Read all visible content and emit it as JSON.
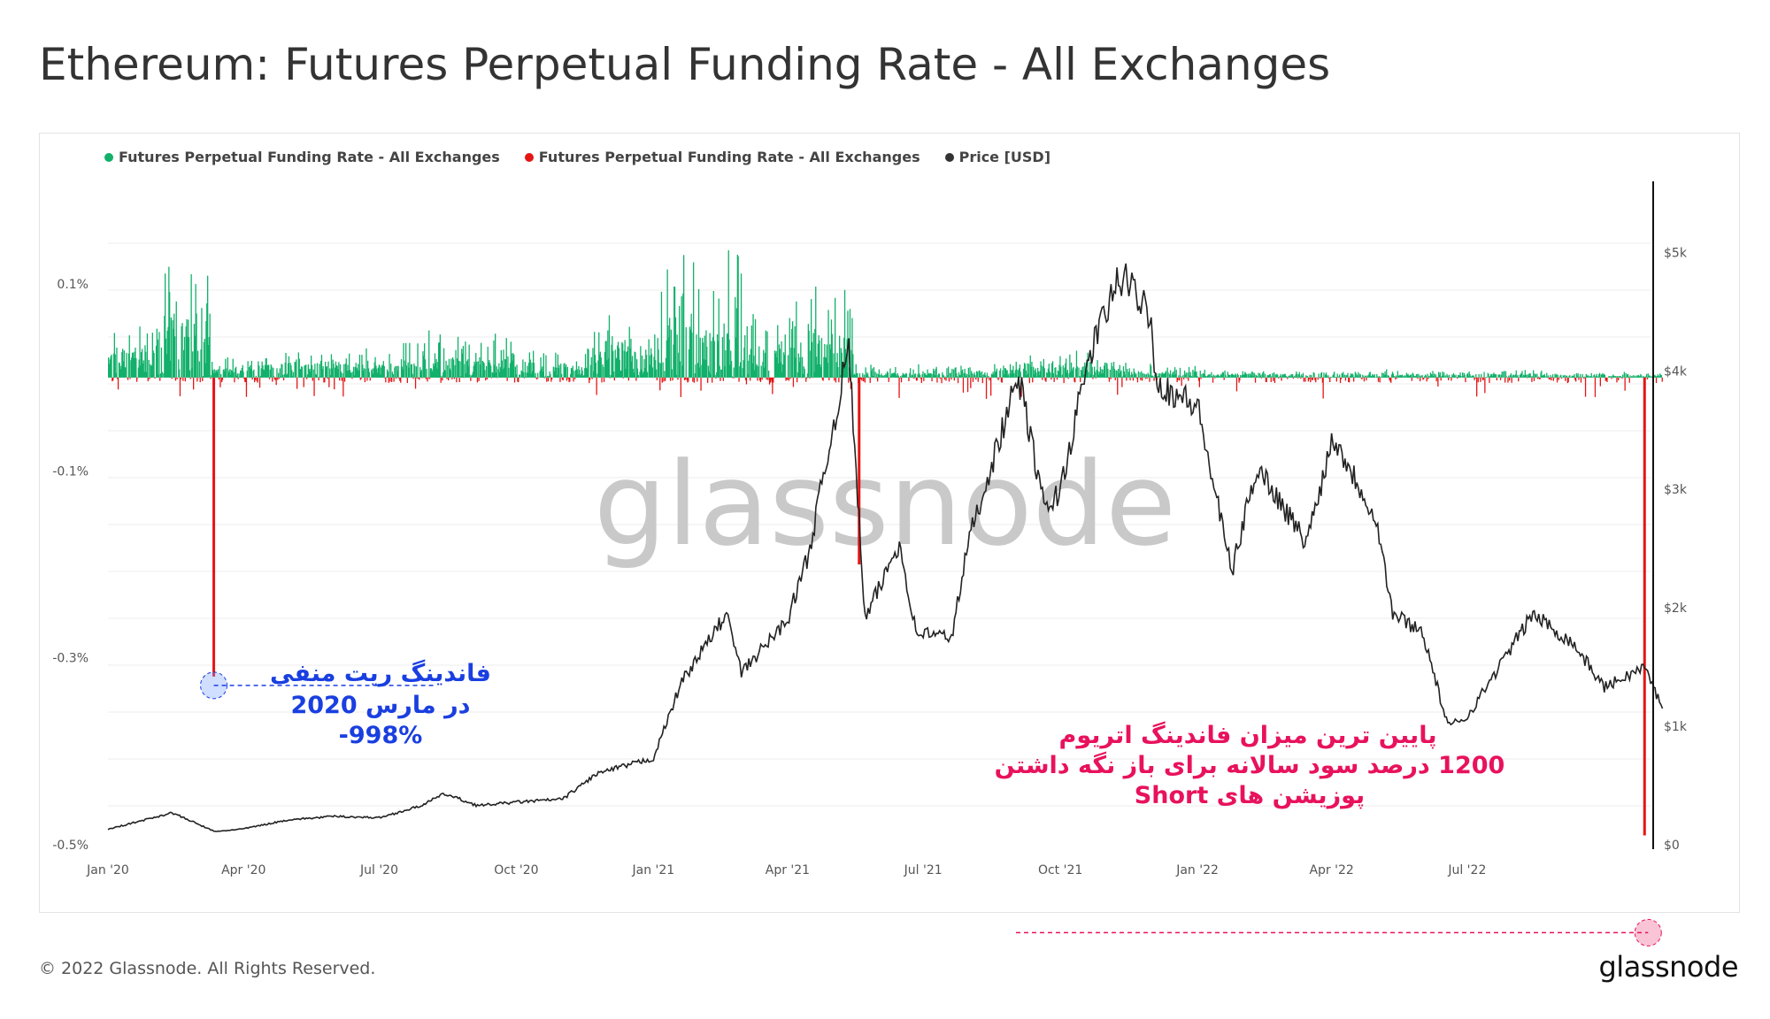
{
  "title": "Ethereum: Futures Perpetual Funding Rate - All Exchanges",
  "footer": {
    "copyright": "© 2022 Glassnode. All Rights Reserved.",
    "logo": "glassnode"
  },
  "watermark": "glassnode",
  "colors": {
    "positive": "#12b06a",
    "negative": "#e51515",
    "price": "#222222",
    "annotation_blue": "#1a3fe0",
    "annotation_pink": "#e8125c"
  },
  "chart_data": {
    "type": "bar",
    "legend": [
      {
        "name": "Futures Perpetual Funding Rate - All Exchanges",
        "color": "#12b06a"
      },
      {
        "name": "Futures Perpetual Funding Rate - All Exchanges",
        "color": "#e51515"
      },
      {
        "name": "Price [USD]",
        "color": "#333333"
      }
    ],
    "legend_position": "top-left",
    "grid": true,
    "x_ticks": [
      "Jan '20",
      "Apr '20",
      "Jul '20",
      "Oct '20",
      "Jan '21",
      "Apr '21",
      "Jul '21",
      "Oct '21",
      "Jan '22",
      "Apr '22",
      "Jul '22"
    ],
    "x_range": [
      "2020-01-01",
      "2022-11-01"
    ],
    "y_left_ticks": [
      {
        "value": 0.1,
        "label": "0.1%"
      },
      {
        "value": -0.1,
        "label": "-0.1%"
      },
      {
        "value": -0.3,
        "label": "-0.3%"
      },
      {
        "value": -0.5,
        "label": "-0.5%"
      }
    ],
    "y_left_range": [
      -0.5,
      0.21
    ],
    "y_right_ticks": [
      {
        "value": 5000,
        "label": "$5k"
      },
      {
        "value": 4000,
        "label": "$4k"
      },
      {
        "value": 3000,
        "label": "$3k"
      },
      {
        "value": 2000,
        "label": "$2k"
      },
      {
        "value": 1000,
        "label": "$1k"
      },
      {
        "value": 0,
        "label": "$0"
      }
    ],
    "y_right_range": [
      0,
      5600
    ],
    "funding_rate_spikes": [
      {
        "date": "2020-03-12",
        "value": -0.32
      },
      {
        "date": "2021-05-19",
        "value": -0.2
      },
      {
        "date": "2022-10-28",
        "value": -0.49
      }
    ],
    "price_series": [
      [
        "2020-01-01",
        130
      ],
      [
        "2020-02-13",
        270
      ],
      [
        "2020-03-13",
        110
      ],
      [
        "2020-04-01",
        135
      ],
      [
        "2020-05-01",
        210
      ],
      [
        "2020-06-01",
        240
      ],
      [
        "2020-07-01",
        228
      ],
      [
        "2020-07-27",
        320
      ],
      [
        "2020-08-14",
        430
      ],
      [
        "2020-09-05",
        330
      ],
      [
        "2020-10-01",
        360
      ],
      [
        "2020-11-01",
        385
      ],
      [
        "2020-11-24",
        600
      ],
      [
        "2021-01-01",
        730
      ],
      [
        "2021-01-20",
        1380
      ],
      [
        "2021-02-19",
        1950
      ],
      [
        "2021-03-01",
        1450
      ],
      [
        "2021-04-01",
        1900
      ],
      [
        "2021-04-15",
        2450
      ],
      [
        "2021-05-12",
        4200
      ],
      [
        "2021-05-23",
        1900
      ],
      [
        "2021-06-15",
        2550
      ],
      [
        "2021-06-26",
        1800
      ],
      [
        "2021-07-20",
        1750
      ],
      [
        "2021-08-01",
        2600
      ],
      [
        "2021-09-03",
        3950
      ],
      [
        "2021-09-21",
        2800
      ],
      [
        "2021-10-01",
        3000
      ],
      [
        "2021-10-21",
        4150
      ],
      [
        "2021-11-10",
        4800
      ],
      [
        "2021-12-01",
        4500
      ],
      [
        "2021-12-04",
        3900
      ],
      [
        "2022-01-01",
        3700
      ],
      [
        "2022-01-24",
        2300
      ],
      [
        "2022-02-10",
        3200
      ],
      [
        "2022-03-15",
        2550
      ],
      [
        "2022-04-02",
        3450
      ],
      [
        "2022-05-01",
        2750
      ],
      [
        "2022-05-12",
        1950
      ],
      [
        "2022-06-01",
        1800
      ],
      [
        "2022-06-18",
        1000
      ],
      [
        "2022-07-01",
        1080
      ],
      [
        "2022-08-14",
        1950
      ],
      [
        "2022-09-10",
        1700
      ],
      [
        "2022-10-01",
        1330
      ],
      [
        "2022-10-28",
        1500
      ],
      [
        "2022-11-09",
        1150
      ]
    ],
    "annotations": [
      {
        "lines": [
          "فاندینگ ریت منفی",
          "در مارس 2020",
          "998%-"
        ],
        "color": "#1a3fe0"
      },
      {
        "lines": [
          "پایین ترین میزان فاندینگ اتریوم",
          "1200 درصد سود سالانه برای باز نگه داشتن",
          "پوزیشن های Short"
        ],
        "color": "#e8125c"
      }
    ]
  }
}
